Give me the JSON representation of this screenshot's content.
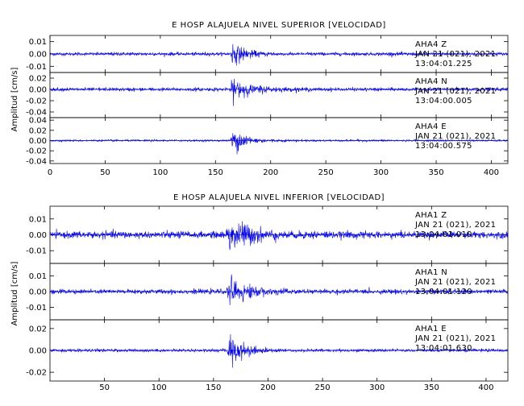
{
  "chart_data": [
    {
      "type": "line",
      "title": "E HOSP ALAJUELA NIVEL SUPERIOR [VELOCIDAD]",
      "ylabel": "Amplitud [cm/s]",
      "xlim": [
        0,
        415
      ],
      "x_ticks": [
        0,
        50,
        100,
        150,
        200,
        250,
        300,
        350,
        400
      ],
      "channels": [
        {
          "station": "AHA4",
          "component": "Z",
          "date": "JAN 21 (021), 2021",
          "time": "13:04:01.225",
          "ylim": [
            -0.015,
            0.015
          ],
          "y_ticks": [
            0.01,
            0.0,
            -0.01
          ],
          "y_tick_labels": [
            "0.01",
            "0.00",
            "-0.01"
          ],
          "noise_level": 0.0011,
          "peak_amplitude": 0.013,
          "event_onset": 163,
          "peak_time": 166,
          "coda_decay": 12
        },
        {
          "station": "AHA4",
          "component": "N",
          "date": "JAN 21 (021), 2021",
          "time": "13:04:00.005",
          "ylim": [
            -0.05,
            0.03
          ],
          "y_ticks": [
            0.02,
            0.0,
            -0.02,
            -0.04
          ],
          "y_tick_labels": [
            "0.02",
            "0.00",
            "-0.02",
            "-0.04"
          ],
          "noise_level": 0.0025,
          "peak_amplitude": 0.026,
          "event_onset": 162,
          "peak_time": 167,
          "coda_decay": 16
        },
        {
          "station": "AHA4",
          "component": "E",
          "date": "JAN 21 (021), 2021",
          "time": "13:04:00.575",
          "ylim": [
            -0.045,
            0.045
          ],
          "y_ticks": [
            0.04,
            0.02,
            0.0,
            -0.02,
            -0.04
          ],
          "y_tick_labels": [
            "0.04",
            "0.02",
            "0.00",
            "-0.02",
            "-0.04"
          ],
          "noise_level": 0.0015,
          "peak_amplitude": 0.032,
          "event_onset": 163,
          "peak_time": 166,
          "coda_decay": 14
        }
      ]
    },
    {
      "type": "line",
      "title": "E HOSP ALAJUELA NIVEL INFERIOR [VELOCIDAD]",
      "ylabel": "Amplitud [cm/s]",
      "xlim": [
        0,
        420
      ],
      "x_ticks": [
        50,
        100,
        150,
        200,
        250,
        300,
        350,
        400
      ],
      "channels": [
        {
          "station": "AHA1",
          "component": "Z",
          "date": "JAN 21 (021), 2021",
          "time": "13:04:01.010",
          "ylim": [
            -0.018,
            0.018
          ],
          "y_ticks": [
            0.01,
            0.0,
            -0.01
          ],
          "y_tick_labels": [
            "0.01",
            "0.00",
            "-0.01"
          ],
          "noise_level": 0.0018,
          "peak_amplitude": 0.015,
          "event_onset": 161,
          "peak_time": 165,
          "coda_decay": 18
        },
        {
          "station": "AHA1",
          "component": "N",
          "date": "JAN 21 (021), 2021",
          "time": "13:04:01.120",
          "ylim": [
            -0.018,
            0.018
          ],
          "y_ticks": [
            0.01,
            0.0,
            -0.01
          ],
          "y_tick_labels": [
            "0.01",
            "0.00",
            "-0.01"
          ],
          "noise_level": 0.0012,
          "peak_amplitude": 0.013,
          "event_onset": 162,
          "peak_time": 166,
          "coda_decay": 16
        },
        {
          "station": "AHA1",
          "component": "E",
          "date": "JAN 21 (021), 2021",
          "time": "13:04:01.630",
          "ylim": [
            -0.028,
            0.028
          ],
          "y_ticks": [
            0.02,
            0.0,
            -0.02
          ],
          "y_tick_labels": [
            "0.02",
            "0.00",
            "-0.02"
          ],
          "noise_level": 0.0011,
          "peak_amplitude": 0.022,
          "event_onset": 162,
          "peak_time": 166,
          "coda_decay": 12
        }
      ]
    }
  ],
  "colors": {
    "trace": "#0000ee",
    "axes": "#000000",
    "background": "#ffffff"
  }
}
